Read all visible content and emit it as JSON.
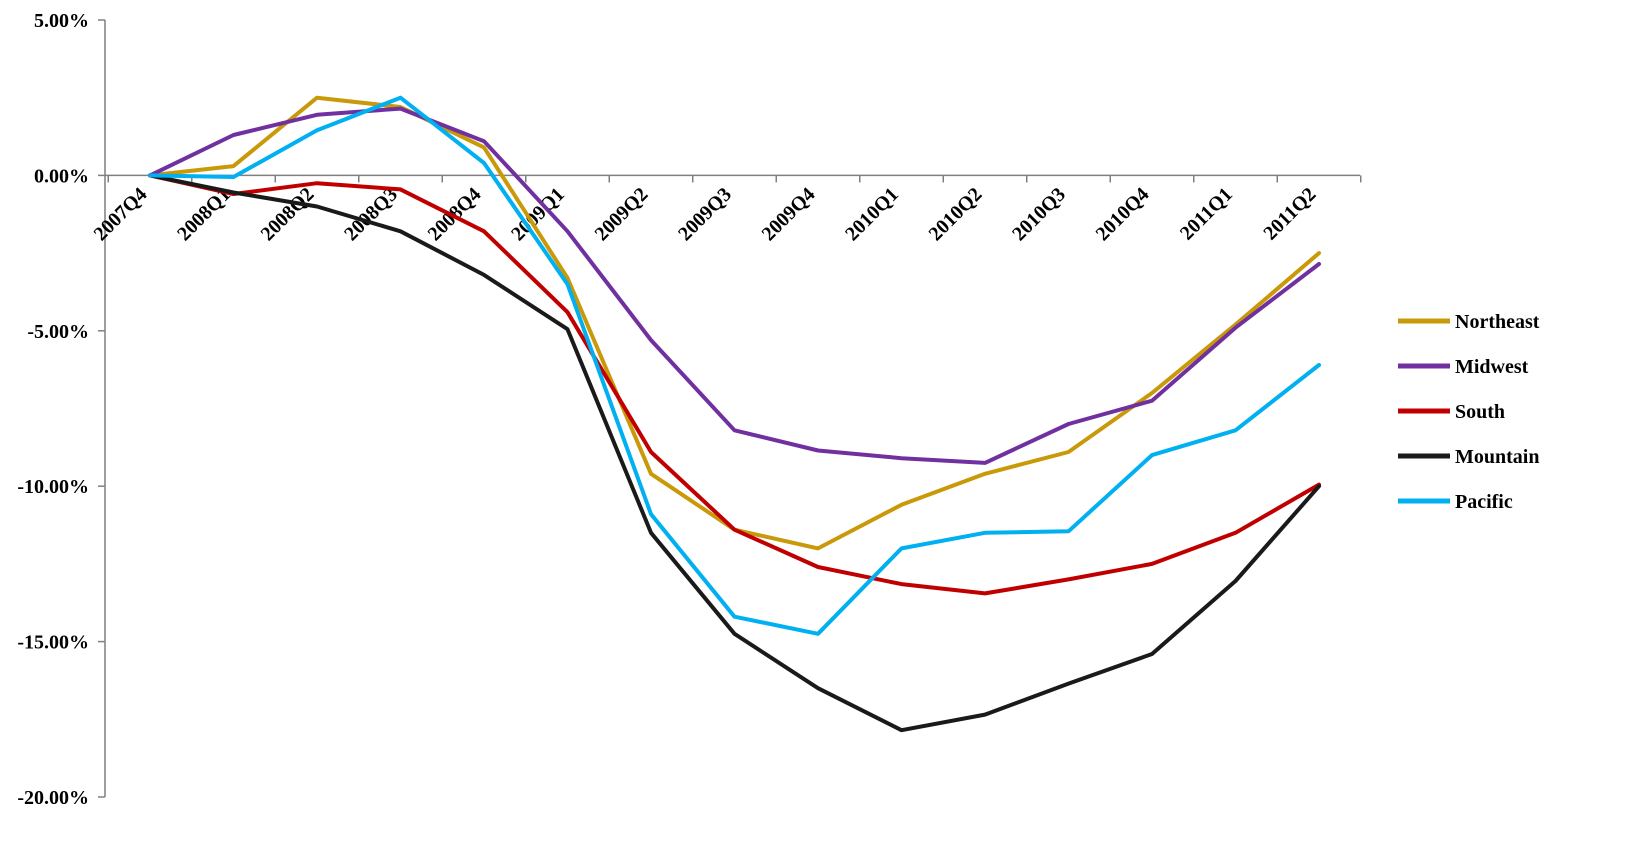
{
  "chart_data": {
    "type": "line",
    "title": "",
    "xlabel": "",
    "ylabel": "",
    "categories": [
      "2007Q4",
      "2008Q1",
      "2008Q2",
      "2008Q3",
      "2008Q4",
      "2009Q1",
      "2009Q2",
      "2009Q3",
      "2009Q4",
      "2010Q1",
      "2010Q2",
      "2010Q3",
      "2010Q4",
      "2011Q1",
      "2011Q2"
    ],
    "ylim": [
      -20,
      5
    ],
    "yticks": [
      5,
      0,
      -5,
      -10,
      -15,
      -20
    ],
    "ytick_labels": [
      "5.00%",
      "0.00%",
      "-5.00%",
      "-10.00%",
      "-15.00%",
      "-20.00%"
    ],
    "grid": false,
    "legend_position": "right",
    "series": [
      {
        "name": "Northeast",
        "color": "#C9990A",
        "values": [
          0,
          0.3,
          2.5,
          2.2,
          0.9,
          -3.3,
          -9.6,
          -11.4,
          -12.0,
          -10.6,
          -9.6,
          -8.9,
          -7.0,
          -4.8,
          -2.5
        ]
      },
      {
        "name": "Midwest",
        "color": "#7030A0",
        "values": [
          0,
          1.3,
          1.95,
          2.15,
          1.1,
          -1.8,
          -5.3,
          -8.2,
          -8.85,
          -9.1,
          -9.25,
          -8.0,
          -7.25,
          -4.9,
          -2.85
        ]
      },
      {
        "name": "South",
        "color": "#C00000",
        "values": [
          0,
          -0.6,
          -0.25,
          -0.45,
          -1.8,
          -4.4,
          -8.9,
          -11.4,
          -12.6,
          -13.15,
          -13.45,
          -13.0,
          -12.5,
          -11.5,
          -9.95
        ]
      },
      {
        "name": "Mountain",
        "color": "#1A1A1A",
        "values": [
          0,
          -0.55,
          -1.0,
          -1.8,
          -3.2,
          -4.95,
          -11.5,
          -14.75,
          -16.5,
          -17.85,
          -17.35,
          -16.35,
          -15.4,
          -13.05,
          -10.0
        ]
      },
      {
        "name": "Pacific",
        "color": "#00B0F0",
        "values": [
          0,
          -0.05,
          1.45,
          2.5,
          0.4,
          -3.5,
          -10.9,
          -14.2,
          -14.75,
          -12.0,
          -11.5,
          -11.45,
          -9.0,
          -8.2,
          -6.1
        ]
      }
    ]
  }
}
